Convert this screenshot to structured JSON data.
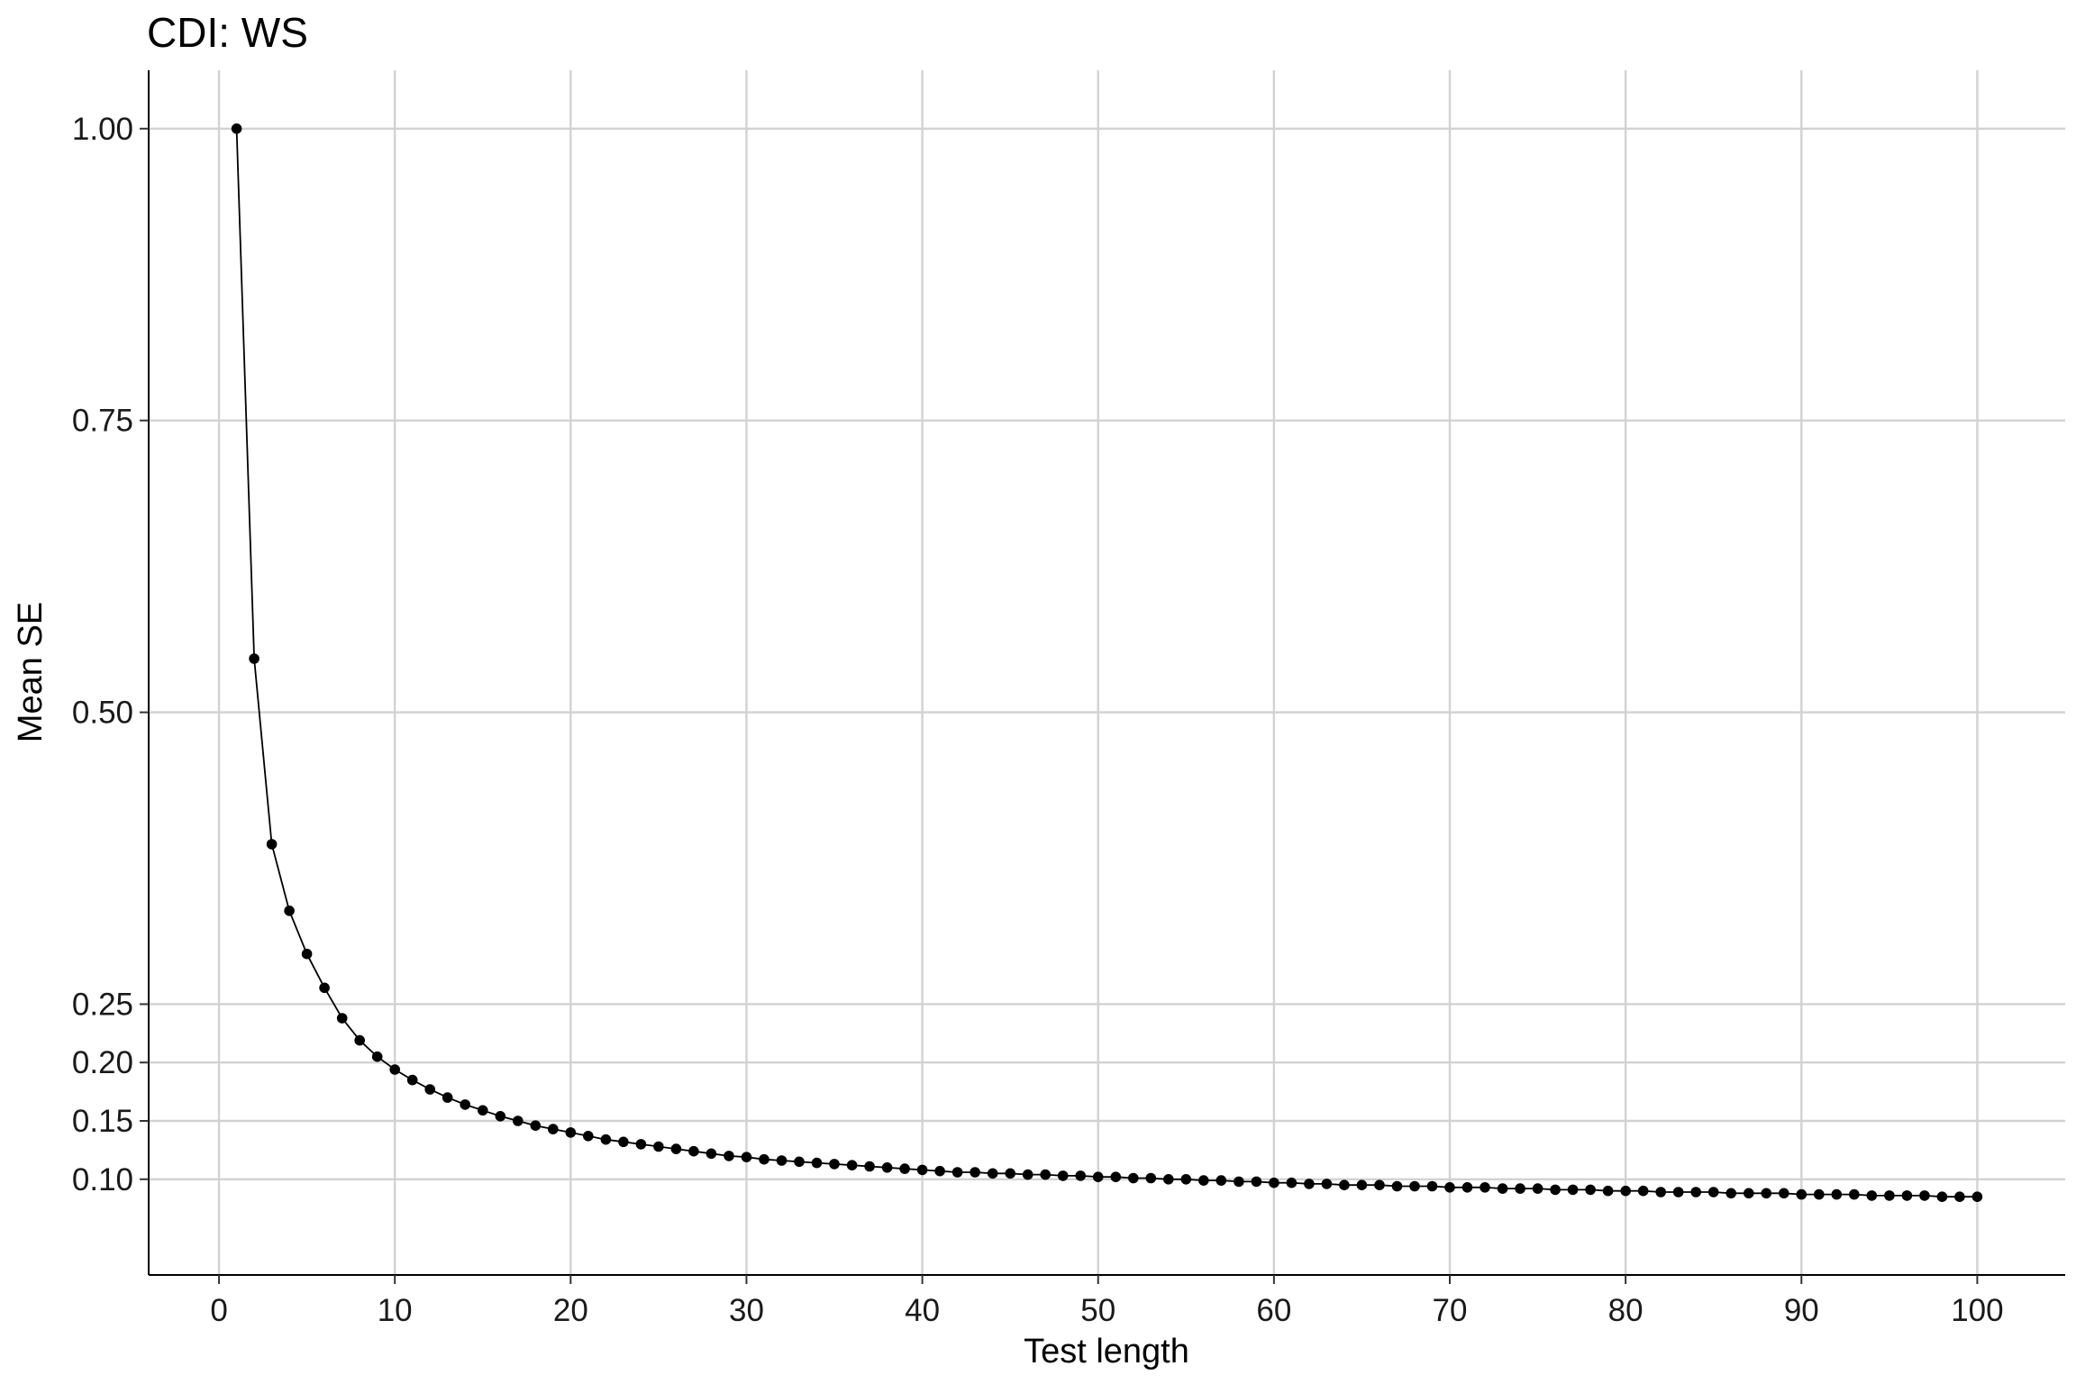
{
  "chart_data": {
    "type": "line",
    "title": "CDI: WS",
    "xlabel": "Test length",
    "ylabel": "Mean SE",
    "xlim": [
      -4,
      105
    ],
    "ylim": [
      0.018,
      1.05
    ],
    "x_ticks": [
      0,
      10,
      20,
      30,
      40,
      50,
      60,
      70,
      80,
      90,
      100
    ],
    "y_ticks": [
      0.1,
      0.15,
      0.2,
      0.25,
      0.5,
      0.75,
      1.0
    ],
    "y_tick_labels": [
      "0.10",
      "0.15",
      "0.20",
      "0.25",
      "0.50",
      "0.75",
      "1.00"
    ],
    "x_tick_labels": [
      "0",
      "10",
      "20",
      "30",
      "40",
      "50",
      "60",
      "70",
      "80",
      "90",
      "100"
    ],
    "grid": true,
    "legend": "none",
    "series": [
      {
        "color": "#000000",
        "markers": true,
        "x": [
          1,
          2,
          3,
          4,
          5,
          6,
          7,
          8,
          9,
          10,
          11,
          12,
          13,
          14,
          15,
          16,
          17,
          18,
          19,
          20,
          21,
          22,
          23,
          24,
          25,
          26,
          27,
          28,
          29,
          30,
          31,
          32,
          33,
          34,
          35,
          36,
          37,
          38,
          39,
          40,
          41,
          42,
          43,
          44,
          45,
          46,
          47,
          48,
          49,
          50,
          51,
          52,
          53,
          54,
          55,
          56,
          57,
          58,
          59,
          60,
          61,
          62,
          63,
          64,
          65,
          66,
          67,
          68,
          69,
          70,
          71,
          72,
          73,
          74,
          75,
          76,
          77,
          78,
          79,
          80,
          81,
          82,
          83,
          84,
          85,
          86,
          87,
          88,
          89,
          90,
          91,
          92,
          93,
          94,
          95,
          96,
          97,
          98,
          99,
          100
        ],
        "values": [
          1.0,
          0.546,
          0.387,
          0.33,
          0.293,
          0.264,
          0.238,
          0.219,
          0.205,
          0.194,
          0.185,
          0.177,
          0.17,
          0.164,
          0.159,
          0.154,
          0.15,
          0.146,
          0.143,
          0.14,
          0.137,
          0.134,
          0.132,
          0.13,
          0.128,
          0.126,
          0.124,
          0.122,
          0.12,
          0.119,
          0.117,
          0.116,
          0.115,
          0.114,
          0.113,
          0.112,
          0.111,
          0.11,
          0.109,
          0.108,
          0.107,
          0.106,
          0.106,
          0.105,
          0.105,
          0.104,
          0.104,
          0.103,
          0.103,
          0.102,
          0.102,
          0.101,
          0.101,
          0.1,
          0.1,
          0.099,
          0.099,
          0.098,
          0.098,
          0.097,
          0.097,
          0.096,
          0.096,
          0.095,
          0.095,
          0.095,
          0.094,
          0.094,
          0.094,
          0.093,
          0.093,
          0.093,
          0.092,
          0.092,
          0.092,
          0.091,
          0.091,
          0.091,
          0.09,
          0.09,
          0.09,
          0.089,
          0.089,
          0.089,
          0.089,
          0.088,
          0.088,
          0.088,
          0.088,
          0.087,
          0.087,
          0.087,
          0.087,
          0.086,
          0.086,
          0.086,
          0.086,
          0.085,
          0.085,
          0.085
        ]
      }
    ]
  }
}
